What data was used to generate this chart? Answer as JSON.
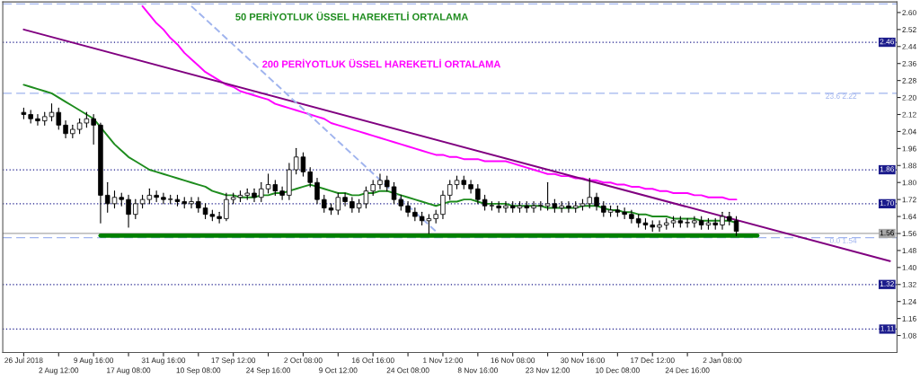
{
  "chart_data": {
    "type": "candlestick",
    "categories": [
      "26 Jul 2018",
      null,
      null,
      null,
      null,
      "2 Aug 12:00",
      null,
      null,
      null,
      null,
      "9 Aug 16:00",
      null,
      null,
      null,
      null,
      "17 Aug 08:00",
      null,
      null,
      null,
      null,
      "31 Aug 16:00",
      null,
      null,
      null,
      null,
      "10 Sep 08:00",
      null,
      null,
      null,
      null,
      "17 Sep 12:00",
      null,
      null,
      null,
      null,
      "24 Sep 16:00",
      null,
      null,
      null,
      null,
      "2 Oct 08:00",
      null,
      null,
      null,
      null,
      "9 Oct 12:00",
      null,
      null,
      null,
      null,
      "16 Oct 16:00",
      null,
      null,
      null,
      null,
      "24 Oct 08:00",
      null,
      null,
      null,
      null,
      "1 Nov 12:00",
      null,
      null,
      null,
      null,
      "8 Nov 16:00",
      null,
      null,
      null,
      null,
      "16 Nov 08:00",
      null,
      null,
      null,
      null,
      "23 Nov 12:00",
      null,
      null,
      null,
      null,
      "30 Nov 16:00",
      null,
      null,
      null,
      null,
      "10 Dec 08:00",
      null,
      null,
      null,
      null,
      "17 Dec 12:00",
      null,
      null,
      null,
      null,
      "24 Dec 16:00",
      null,
      null,
      null,
      null,
      "2 Jan 08:00",
      null,
      null,
      null,
      null,
      null,
      null,
      null,
      null,
      null,
      null,
      null,
      null,
      null,
      null,
      null,
      null,
      null,
      null,
      null,
      null,
      null,
      null,
      null,
      null
    ],
    "ohlc": [
      [
        2.13,
        2.15,
        2.1,
        2.12
      ],
      [
        2.12,
        2.14,
        2.08,
        2.1
      ],
      [
        2.1,
        2.12,
        2.07,
        2.09
      ],
      [
        2.09,
        2.13,
        2.07,
        2.11
      ],
      [
        2.11,
        2.17,
        2.09,
        2.13
      ],
      [
        2.13,
        2.15,
        2.05,
        2.07
      ],
      [
        2.07,
        2.09,
        2.01,
        2.03
      ],
      [
        2.03,
        2.07,
        2.01,
        2.05
      ],
      [
        2.05,
        2.1,
        2.03,
        2.08
      ],
      [
        2.08,
        2.13,
        2.06,
        2.1
      ],
      [
        2.1,
        2.12,
        1.98,
        2.07
      ],
      [
        2.07,
        2.08,
        1.61,
        1.74
      ],
      [
        1.74,
        1.8,
        1.66,
        1.7
      ],
      [
        1.7,
        1.76,
        1.68,
        1.73
      ],
      [
        1.73,
        1.75,
        1.69,
        1.72
      ],
      [
        1.72,
        1.74,
        1.59,
        1.65
      ],
      [
        1.65,
        1.72,
        1.63,
        1.7
      ],
      [
        1.7,
        1.74,
        1.68,
        1.72
      ],
      [
        1.72,
        1.77,
        1.7,
        1.74
      ],
      [
        1.74,
        1.76,
        1.71,
        1.73
      ],
      [
        1.73,
        1.75,
        1.7,
        1.72
      ],
      [
        1.72,
        1.74,
        1.7,
        1.72
      ],
      [
        1.72,
        1.74,
        1.69,
        1.71
      ],
      [
        1.71,
        1.73,
        1.68,
        1.7
      ],
      [
        1.7,
        1.73,
        1.68,
        1.71
      ],
      [
        1.71,
        1.73,
        1.66,
        1.68
      ],
      [
        1.68,
        1.7,
        1.63,
        1.65
      ],
      [
        1.65,
        1.67,
        1.62,
        1.64
      ],
      [
        1.64,
        1.66,
        1.61,
        1.63
      ],
      [
        1.63,
        1.75,
        1.62,
        1.72
      ],
      [
        1.72,
        1.75,
        1.7,
        1.73
      ],
      [
        1.73,
        1.76,
        1.71,
        1.74
      ],
      [
        1.74,
        1.77,
        1.72,
        1.75
      ],
      [
        1.75,
        1.77,
        1.71,
        1.73
      ],
      [
        1.73,
        1.8,
        1.71,
        1.77
      ],
      [
        1.77,
        1.84,
        1.75,
        1.79
      ],
      [
        1.79,
        1.81,
        1.74,
        1.76
      ],
      [
        1.76,
        1.78,
        1.72,
        1.74
      ],
      [
        1.74,
        1.89,
        1.72,
        1.86
      ],
      [
        1.86,
        1.96,
        1.84,
        1.92
      ],
      [
        1.92,
        1.94,
        1.83,
        1.85
      ],
      [
        1.85,
        1.87,
        1.78,
        1.8
      ],
      [
        1.8,
        1.82,
        1.7,
        1.72
      ],
      [
        1.72,
        1.74,
        1.66,
        1.68
      ],
      [
        1.68,
        1.7,
        1.65,
        1.67
      ],
      [
        1.67,
        1.75,
        1.65,
        1.73
      ],
      [
        1.73,
        1.75,
        1.69,
        1.71
      ],
      [
        1.71,
        1.73,
        1.66,
        1.68
      ],
      [
        1.68,
        1.72,
        1.66,
        1.7
      ],
      [
        1.7,
        1.78,
        1.68,
        1.76
      ],
      [
        1.76,
        1.81,
        1.74,
        1.79
      ],
      [
        1.79,
        1.84,
        1.77,
        1.81
      ],
      [
        1.81,
        1.83,
        1.76,
        1.78
      ],
      [
        1.78,
        1.8,
        1.7,
        1.72
      ],
      [
        1.72,
        1.74,
        1.67,
        1.69
      ],
      [
        1.69,
        1.71,
        1.64,
        1.66
      ],
      [
        1.66,
        1.68,
        1.62,
        1.64
      ],
      [
        1.64,
        1.66,
        1.6,
        1.62
      ],
      [
        1.62,
        1.65,
        1.56,
        1.63
      ],
      [
        1.63,
        1.67,
        1.61,
        1.65
      ],
      [
        1.65,
        1.76,
        1.63,
        1.74
      ],
      [
        1.74,
        1.81,
        1.72,
        1.79
      ],
      [
        1.79,
        1.83,
        1.77,
        1.81
      ],
      [
        1.81,
        1.83,
        1.77,
        1.79
      ],
      [
        1.79,
        1.81,
        1.75,
        1.77
      ],
      [
        1.77,
        1.79,
        1.7,
        1.72
      ],
      [
        1.72,
        1.74,
        1.67,
        1.69
      ],
      [
        1.69,
        1.71,
        1.67,
        1.69
      ],
      [
        1.69,
        1.71,
        1.66,
        1.68
      ],
      [
        1.68,
        1.71,
        1.66,
        1.69
      ],
      [
        1.69,
        1.71,
        1.66,
        1.68
      ],
      [
        1.68,
        1.71,
        1.66,
        1.69
      ],
      [
        1.69,
        1.71,
        1.66,
        1.68
      ],
      [
        1.68,
        1.71,
        1.66,
        1.69
      ],
      [
        1.69,
        1.71,
        1.67,
        1.69
      ],
      [
        1.69,
        1.8,
        1.67,
        1.7
      ],
      [
        1.7,
        1.72,
        1.66,
        1.68
      ],
      [
        1.68,
        1.71,
        1.66,
        1.69
      ],
      [
        1.69,
        1.71,
        1.66,
        1.68
      ],
      [
        1.68,
        1.71,
        1.66,
        1.69
      ],
      [
        1.69,
        1.72,
        1.67,
        1.7
      ],
      [
        1.7,
        1.82,
        1.68,
        1.73
      ],
      [
        1.73,
        1.75,
        1.67,
        1.69
      ],
      [
        1.69,
        1.71,
        1.64,
        1.66
      ],
      [
        1.66,
        1.69,
        1.64,
        1.67
      ],
      [
        1.67,
        1.69,
        1.64,
        1.66
      ],
      [
        1.66,
        1.68,
        1.63,
        1.65
      ],
      [
        1.65,
        1.67,
        1.61,
        1.63
      ],
      [
        1.63,
        1.65,
        1.59,
        1.61
      ],
      [
        1.61,
        1.63,
        1.58,
        1.6
      ],
      [
        1.6,
        1.62,
        1.57,
        1.59
      ],
      [
        1.59,
        1.62,
        1.57,
        1.6
      ],
      [
        1.6,
        1.63,
        1.58,
        1.61
      ],
      [
        1.61,
        1.64,
        1.59,
        1.62
      ],
      [
        1.62,
        1.64,
        1.59,
        1.61
      ],
      [
        1.61,
        1.63,
        1.59,
        1.61
      ],
      [
        1.61,
        1.64,
        1.59,
        1.62
      ],
      [
        1.62,
        1.64,
        1.58,
        1.6
      ],
      [
        1.6,
        1.63,
        1.58,
        1.61
      ],
      [
        1.61,
        1.63,
        1.58,
        1.6
      ],
      [
        1.6,
        1.66,
        1.58,
        1.64
      ],
      [
        1.64,
        1.66,
        1.6,
        1.62
      ],
      [
        1.62,
        1.64,
        1.55,
        1.57
      ],
      null,
      null,
      null,
      null,
      null,
      null,
      null,
      null,
      null,
      null,
      null,
      null,
      null,
      null,
      null,
      null,
      null,
      null,
      null,
      null,
      null,
      null
    ],
    "series": [
      {
        "name": "50 PERİYOTLUK ÜSSEL HAREKETLİ ORTALAMA",
        "type": "line",
        "color": "#1e8c1e",
        "values": [
          2.26,
          2.25,
          2.24,
          2.23,
          2.22,
          2.2,
          2.18,
          2.16,
          2.14,
          2.12,
          2.1,
          2.06,
          2.02,
          1.98,
          1.95,
          1.92,
          1.9,
          1.88,
          1.86,
          1.85,
          1.84,
          1.83,
          1.82,
          1.81,
          1.8,
          1.79,
          1.78,
          1.76,
          1.75,
          1.74,
          1.74,
          1.73,
          1.73,
          1.73,
          1.74,
          1.74,
          1.75,
          1.75,
          1.76,
          1.77,
          1.78,
          1.79,
          1.78,
          1.77,
          1.76,
          1.75,
          1.75,
          1.74,
          1.74,
          1.75,
          1.75,
          1.76,
          1.76,
          1.75,
          1.74,
          1.73,
          1.72,
          1.71,
          1.7,
          1.69,
          1.7,
          1.71,
          1.71,
          1.72,
          1.72,
          1.71,
          1.7,
          1.7,
          1.7,
          1.7,
          1.69,
          1.69,
          1.69,
          1.69,
          1.69,
          1.68,
          1.68,
          1.68,
          1.68,
          1.68,
          1.69,
          1.69,
          1.69,
          1.68,
          1.67,
          1.67,
          1.66,
          1.66,
          1.65,
          1.65,
          1.64,
          1.64,
          1.64,
          1.63,
          1.63,
          1.63,
          1.63,
          1.62,
          1.62,
          1.62,
          1.62,
          1.62,
          1.61,
          null,
          null,
          null,
          null,
          null,
          null,
          null,
          null,
          null,
          null,
          null,
          null,
          null,
          null,
          null,
          null,
          null,
          null,
          null,
          null,
          null,
          null
        ]
      },
      {
        "name": "200 PERİYOTLUK ÜSSEL HAREKETLİ ORTALAMA",
        "type": "line",
        "color": "#ff00ff",
        "values": [
          null,
          null,
          null,
          null,
          null,
          null,
          null,
          null,
          null,
          null,
          null,
          null,
          null,
          null,
          null,
          null,
          null,
          2.63,
          2.59,
          2.55,
          2.52,
          2.48,
          2.45,
          2.41,
          2.38,
          2.35,
          2.32,
          2.3,
          2.28,
          2.26,
          2.25,
          2.23,
          2.22,
          2.21,
          2.2,
          2.19,
          2.17,
          2.16,
          2.15,
          2.14,
          2.13,
          2.12,
          2.11,
          2.1,
          2.08,
          2.07,
          2.06,
          2.05,
          2.04,
          2.03,
          2.02,
          2.01,
          2.0,
          1.99,
          1.98,
          1.97,
          1.96,
          1.95,
          1.94,
          1.93,
          1.93,
          1.92,
          1.92,
          1.91,
          1.91,
          1.91,
          1.9,
          1.9,
          1.9,
          1.9,
          1.89,
          1.88,
          1.87,
          1.86,
          1.85,
          1.84,
          1.84,
          1.83,
          1.83,
          1.82,
          1.82,
          1.81,
          1.81,
          1.8,
          1.8,
          1.79,
          1.79,
          1.78,
          1.78,
          1.77,
          1.77,
          1.76,
          1.76,
          1.75,
          1.75,
          1.75,
          1.74,
          1.74,
          1.73,
          1.73,
          1.73,
          1.72,
          1.72,
          null,
          null,
          null,
          null,
          null,
          null,
          null,
          null,
          null,
          null,
          null,
          null,
          null,
          null,
          null,
          null,
          null,
          null,
          null,
          null,
          null,
          null
        ]
      },
      {
        "type": "line",
        "color": "#800080",
        "values": [
          2.52,
          null,
          null,
          null,
          null,
          null,
          null,
          null,
          null,
          null,
          null,
          null,
          null,
          null,
          null,
          null,
          null,
          null,
          null,
          null,
          null,
          null,
          null,
          null,
          null,
          null,
          null,
          null,
          null,
          null,
          null,
          null,
          null,
          null,
          null,
          null,
          null,
          null,
          null,
          null,
          null,
          null,
          null,
          null,
          null,
          null,
          null,
          null,
          null,
          null,
          null,
          null,
          null,
          null,
          null,
          null,
          null,
          null,
          null,
          null,
          null,
          null,
          null,
          null,
          null,
          null,
          null,
          null,
          null,
          null,
          null,
          null,
          null,
          null,
          null,
          null,
          null,
          null,
          null,
          null,
          null,
          null,
          null,
          null,
          null,
          null,
          null,
          null,
          null,
          null,
          null,
          null,
          null,
          null,
          null,
          null,
          null,
          null,
          null,
          null,
          null,
          null,
          null,
          null,
          null,
          null,
          null,
          null,
          null,
          null,
          null,
          null,
          null,
          null,
          null,
          null,
          null,
          null,
          null,
          null,
          null,
          null,
          null,
          null,
          1.43
        ]
      },
      {
        "type": "line",
        "color": "#a0b4ee",
        "line_style": "dashed",
        "values": [
          null,
          null,
          null,
          null,
          null,
          null,
          null,
          null,
          null,
          null,
          null,
          null,
          null,
          null,
          null,
          null,
          null,
          null,
          null,
          null,
          null,
          null,
          null,
          null,
          2.63,
          null,
          null,
          null,
          null,
          null,
          null,
          null,
          null,
          null,
          null,
          null,
          null,
          null,
          null,
          null,
          null,
          null,
          null,
          null,
          null,
          null,
          null,
          null,
          null,
          null,
          null,
          null,
          null,
          null,
          null,
          null,
          null,
          null,
          null,
          1.57,
          null,
          null,
          null,
          null,
          null,
          null,
          null,
          null,
          null,
          null,
          null,
          null,
          null,
          null,
          null,
          null,
          null,
          null,
          null,
          null,
          null,
          null,
          null,
          null,
          null,
          null,
          null,
          null,
          null,
          null,
          null,
          null,
          null,
          null,
          null,
          null,
          null,
          null,
          null,
          null,
          null,
          null,
          null,
          null,
          null,
          null,
          null,
          null,
          null,
          null,
          null,
          null,
          null,
          null,
          null,
          null,
          null,
          null,
          null,
          null,
          null,
          null,
          null,
          null,
          null
        ]
      },
      {
        "type": "line",
        "color": "#008000",
        "values": [
          null,
          null,
          null,
          null,
          null,
          null,
          null,
          null,
          null,
          null,
          null,
          1.55,
          null,
          null,
          null,
          null,
          null,
          null,
          null,
          null,
          null,
          null,
          null,
          null,
          null,
          null,
          null,
          null,
          null,
          null,
          null,
          null,
          null,
          null,
          null,
          null,
          null,
          null,
          null,
          null,
          null,
          null,
          null,
          null,
          null,
          null,
          null,
          null,
          null,
          null,
          null,
          null,
          null,
          null,
          null,
          null,
          null,
          null,
          null,
          null,
          null,
          null,
          null,
          null,
          null,
          null,
          null,
          null,
          null,
          null,
          null,
          null,
          null,
          null,
          null,
          null,
          null,
          null,
          null,
          null,
          null,
          null,
          null,
          null,
          null,
          null,
          null,
          null,
          null,
          null,
          null,
          null,
          null,
          null,
          null,
          null,
          null,
          null,
          null,
          null,
          null,
          null,
          null,
          null,
          null,
          1.55,
          null,
          null,
          null,
          null,
          null,
          null,
          null,
          null,
          null,
          null,
          null,
          null,
          null,
          null,
          null,
          null,
          null,
          null,
          null
        ]
      }
    ],
    "ref_lines": [
      {
        "axis": "y",
        "value": 2.64,
        "color": "#a0b4ee",
        "line_style": "dashed"
      },
      {
        "axis": "y",
        "value": 2.46,
        "label": "2.46",
        "color": "#1c1c8c",
        "line_style": "dotted"
      },
      {
        "axis": "y",
        "value": 2.22,
        "label": "23.6 2.22",
        "color": "#a0b4ee",
        "line_style": "dashed"
      },
      {
        "axis": "y",
        "value": 1.86,
        "label": "1.86",
        "color": "#1c1c8c",
        "line_style": "dotted"
      },
      {
        "axis": "y",
        "value": 1.7,
        "label": "1.70",
        "color": "#1c1c8c",
        "line_style": "dotted"
      },
      {
        "axis": "y",
        "value": 1.56,
        "label": "1.56",
        "color": "#a8a8a8",
        "line_style": "solid"
      },
      {
        "axis": "y",
        "value": 1.54,
        "label": "0.0 1.54",
        "color": "#a0b4ee",
        "line_style": "dashed"
      },
      {
        "axis": "y",
        "value": 1.32,
        "label": "1.32",
        "color": "#1c1c8c",
        "line_style": "dotted"
      },
      {
        "axis": "y",
        "value": 1.11,
        "label": "1.11",
        "color": "#1c1c8c",
        "line_style": "dotted"
      }
    ],
    "ylim": [
      1.0,
      2.65
    ],
    "yticks": [
      {
        "value": 2.6,
        "label": "2.60"
      },
      2.52,
      2.44,
      2.36,
      2.28,
      {
        "value": 2.2,
        "label": "2.20"
      },
      2.12,
      2.04,
      1.96,
      1.88,
      {
        "value": 1.8,
        "label": "1.80"
      },
      1.72,
      1.64,
      1.56,
      1.48,
      {
        "value": 1.4,
        "label": "1.40"
      },
      1.32,
      1.24,
      1.16,
      1.08
    ],
    "grid": false,
    "legend": false
  }
}
